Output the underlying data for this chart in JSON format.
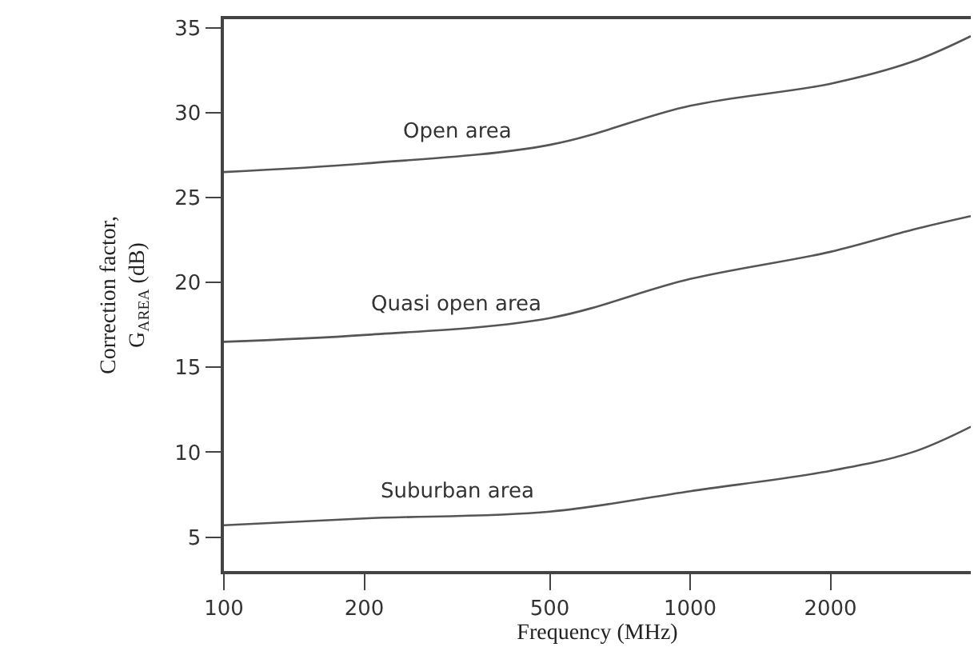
{
  "chart_data": {
    "type": "line",
    "xlabel": "Frequency (MHz)",
    "ylabel": "Correction factor, G$_{AREA}$ (dB)",
    "x": [
      100,
      200,
      500,
      1000,
      2000,
      3000,
      4000
    ],
    "series": [
      {
        "name": "Open area",
        "color": "#555555",
        "values": [
          26.5,
          27,
          28.1,
          30.4,
          31.7,
          33,
          34.5
        ]
      },
      {
        "name": "Quasi open area",
        "color": "#555555",
        "values": [
          16.5,
          16.9,
          17.9,
          20.2,
          21.8,
          23.1,
          23.9
        ]
      },
      {
        "name": "Suburban area",
        "color": "#555555",
        "values": [
          5.7,
          6.1,
          6.5,
          7.7,
          8.9,
          10,
          11.5
        ]
      }
    ],
    "log": "x",
    "xlim": [
      100,
      4000
    ],
    "xticks": [
      100,
      200,
      500,
      1000,
      2000
    ],
    "ylim": [
      3,
      35.5
    ],
    "yticks": [
      5,
      10,
      15,
      20,
      25,
      30,
      35
    ],
    "legend": false,
    "marker": "none",
    "line_style": "solid"
  }
}
